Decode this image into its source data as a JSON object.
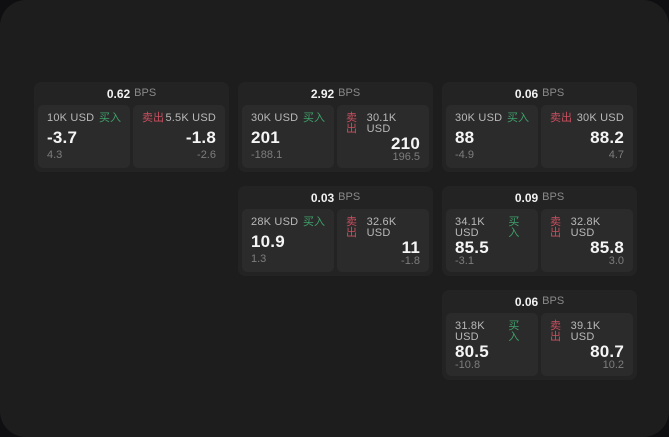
{
  "colors": {
    "background_outer": "#0f0f11",
    "window_background": "#1d1d1e",
    "card_background": "#232323",
    "panel_background": "#2b2b2c",
    "buy_green": "#3fa06a",
    "sell_red": "#c94f5e",
    "price_white": "#f5f5f5",
    "muted_gray": "#7d7d7d"
  },
  "cards": [
    {
      "slot": "row1-col1",
      "bps_value": "0.62",
      "bps_unit": "BPS",
      "buy": {
        "notional": "10K USD",
        "side_label": "买入",
        "price": "-3.7",
        "change": "4.3"
      },
      "sell": {
        "side_label": "卖出",
        "notional": "5.5K USD",
        "price": "-1.8",
        "change": "-2.6"
      }
    },
    {
      "slot": "row1-col2",
      "bps_value": "2.92",
      "bps_unit": "BPS",
      "buy": {
        "notional": "30K USD",
        "side_label": "买入",
        "price": "201",
        "change": "-188.1"
      },
      "sell": {
        "side_label": "卖出",
        "notional": "30.1K USD",
        "price": "210",
        "change": "196.5"
      }
    },
    {
      "slot": "row1-col3",
      "bps_value": "0.06",
      "bps_unit": "BPS",
      "buy": {
        "notional": "30K USD",
        "side_label": "买入",
        "price": "88",
        "change": "-4.9"
      },
      "sell": {
        "side_label": "卖出",
        "notional": "30K USD",
        "price": "88.2",
        "change": "4.7"
      }
    },
    {
      "slot": "row2-col2",
      "bps_value": "0.03",
      "bps_unit": "BPS",
      "buy": {
        "notional": "28K USD",
        "side_label": "买入",
        "price": "10.9",
        "change": "1.3"
      },
      "sell": {
        "side_label": "卖出",
        "notional": "32.6K USD",
        "price": "11",
        "change": "-1.8"
      }
    },
    {
      "slot": "row2-col3",
      "bps_value": "0.09",
      "bps_unit": "BPS",
      "buy": {
        "notional": "34.1K USD",
        "side_label": "买入",
        "price": "85.5",
        "change": "-3.1"
      },
      "sell": {
        "side_label": "卖出",
        "notional": "32.8K USD",
        "price": "85.8",
        "change": "3.0"
      }
    },
    {
      "slot": "row3-col3",
      "bps_value": "0.06",
      "bps_unit": "BPS",
      "buy": {
        "notional": "31.8K USD",
        "side_label": "买入",
        "price": "80.5",
        "change": "-10.8"
      },
      "sell": {
        "side_label": "卖出",
        "notional": "39.1K USD",
        "price": "80.7",
        "change": "10.2"
      }
    }
  ]
}
